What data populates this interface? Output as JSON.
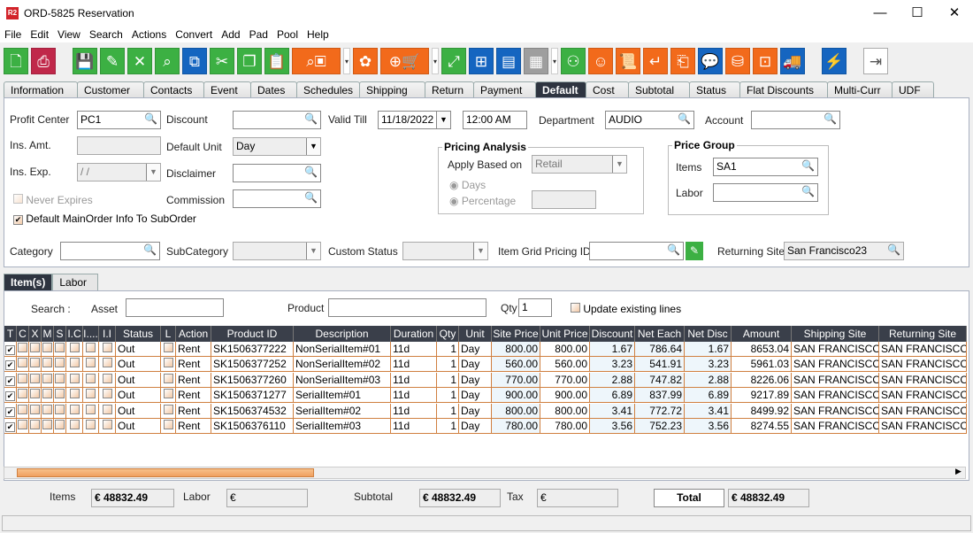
{
  "window": {
    "logo": "R2",
    "title": "ORD-5825 Reservation",
    "min": "—",
    "max": "☐",
    "close": "✕"
  },
  "menu": [
    "File",
    "Edit",
    "View",
    "Search",
    "Actions",
    "Convert",
    "Add",
    "Pad",
    "Pool",
    "Help"
  ],
  "toolbar": [
    {
      "icon": "new-document-icon",
      "glyph": "🗋",
      "color": "#3cb043"
    },
    {
      "icon": "print-icon",
      "glyph": "⎙",
      "color": "#c0284a",
      "gap": true
    },
    {
      "icon": "save-icon",
      "glyph": "💾",
      "color": "#3cb043"
    },
    {
      "icon": "edit-icon",
      "glyph": "✎",
      "color": "#3cb043"
    },
    {
      "icon": "delete-icon",
      "glyph": "✕",
      "color": "#3cb043"
    },
    {
      "icon": "search-icon",
      "glyph": "⌕",
      "color": "#3cb043"
    },
    {
      "icon": "copy-order-icon",
      "glyph": "⧉",
      "color": "#1565c0"
    },
    {
      "icon": "cut-icon",
      "glyph": "✂",
      "color": "#3cb043"
    },
    {
      "icon": "copy-icon",
      "glyph": "❐",
      "color": "#3cb043"
    },
    {
      "icon": "paste-icon",
      "glyph": "📋",
      "color": "#3cb043"
    },
    {
      "icon": "search-inventory-icon",
      "glyph": "⌕▣",
      "color": "#f26a1b",
      "wide": true
    },
    {
      "icon": "dropdown-icon",
      "glyph": "▾",
      "drop": true
    },
    {
      "icon": "components-icon",
      "glyph": "✿",
      "color": "#f26a1b"
    },
    {
      "icon": "add-to-cart-icon",
      "glyph": "⊕🛒",
      "color": "#f26a1b",
      "wide": true
    },
    {
      "icon": "dropdown-icon",
      "glyph": "▾",
      "drop": true
    },
    {
      "icon": "expand-icon",
      "glyph": "⤢",
      "color": "#3cb043"
    },
    {
      "icon": "hierarchy-icon",
      "glyph": "⊞",
      "color": "#1565c0"
    },
    {
      "icon": "message-icon",
      "glyph": "▤",
      "color": "#1565c0"
    },
    {
      "icon": "calendar-icon",
      "glyph": "▦",
      "color": "#9e9e9e"
    },
    {
      "icon": "dropdown-icon",
      "glyph": "▾",
      "drop": true
    },
    {
      "icon": "network-icon",
      "glyph": "⚇",
      "color": "#3cb043"
    },
    {
      "icon": "smiley-icon",
      "glyph": "☺",
      "color": "#f26a1b"
    },
    {
      "icon": "scroll-icon",
      "glyph": "📜",
      "color": "#f26a1b"
    },
    {
      "icon": "return-icon",
      "glyph": "↵",
      "color": "#f26a1b"
    },
    {
      "icon": "box-return-icon",
      "glyph": "⎗",
      "color": "#f26a1b"
    },
    {
      "icon": "chat-count-icon",
      "glyph": "💬",
      "color": "#1565c0"
    },
    {
      "icon": "coins-icon",
      "glyph": "⛁",
      "color": "#f26a1b"
    },
    {
      "icon": "safe-icon",
      "glyph": "⊡",
      "color": "#f26a1b"
    },
    {
      "icon": "delivery-truck-icon",
      "glyph": "🚚",
      "color": "#1565c0",
      "gap": true
    },
    {
      "icon": "lightning-icon",
      "glyph": "⚡",
      "color": "#1565c0",
      "gap": true
    },
    {
      "icon": "exit-icon",
      "glyph": "⇥",
      "color": "#ffffff"
    }
  ],
  "tabs": [
    "Information",
    "Customer",
    "Contacts",
    "Event",
    "Dates",
    "Schedules",
    "Shipping",
    "Return",
    "Payment",
    "Default",
    "Cost",
    "Subtotal",
    "Status",
    "Flat Discounts",
    "Multi-Curr",
    "UDF"
  ],
  "active_tab": "Default",
  "form": {
    "profit_center": {
      "label": "Profit Center",
      "value": "PC1"
    },
    "discount": {
      "label": "Discount",
      "value": ""
    },
    "valid_till": {
      "label": "Valid Till",
      "date": "11/18/2022",
      "time": "12:00 AM"
    },
    "department": {
      "label": "Department",
      "value": "AUDIO"
    },
    "account": {
      "label": "Account",
      "value": ""
    },
    "ins_amt": {
      "label": "Ins. Amt.",
      "value": ""
    },
    "default_unit": {
      "label": "Default Unit",
      "value": "Day"
    },
    "ins_exp": {
      "label": "Ins. Exp.",
      "value": " / /"
    },
    "disclaimer": {
      "label": "Disclaimer",
      "value": ""
    },
    "commission": {
      "label": "Commission",
      "value": ""
    },
    "never_expires": {
      "label": "Never Expires",
      "checked": false
    },
    "default_mainorder": {
      "label": "Default MainOrder Info To SubOrder",
      "checked": true
    },
    "pricing_analysis": {
      "title": "Pricing Analysis",
      "apply_label": "Apply Based on",
      "apply_value": "Retail",
      "days": "Days",
      "percentage": "Percentage"
    },
    "price_group": {
      "title": "Price Group",
      "items_label": "Items",
      "items_value": "SA1",
      "labor_label": "Labor",
      "labor_value": ""
    },
    "category": {
      "label": "Category",
      "value": ""
    },
    "subcategory": {
      "label": "SubCategory",
      "value": ""
    },
    "custom_status": {
      "label": "Custom Status",
      "value": ""
    },
    "item_grid_pricing": {
      "label": "Item Grid Pricing ID",
      "value": ""
    },
    "returning_site": {
      "label": "Returning Site",
      "value": "San Francisco23"
    }
  },
  "subtabs": [
    "Item(s)",
    "Labor"
  ],
  "search": {
    "label": "Search :",
    "asset": "Asset",
    "product": "Product",
    "qty": "Qty",
    "qty_value": "1",
    "update_existing": "Update existing lines"
  },
  "columns": [
    "T",
    "C",
    "X",
    "M",
    "S",
    "I.C",
    "I....",
    "I.I",
    "Status",
    "L",
    "Action",
    "Product ID",
    "Description",
    "Duration",
    "Qty",
    "Unit",
    "Site Price",
    "Unit Price",
    "Discount",
    "Net Each",
    "Net Disc",
    "Amount",
    "Shipping Site",
    "Returning Site"
  ],
  "rows": [
    {
      "t": true,
      "status": "Out",
      "action": "Rent",
      "product_id": "SK1506377222",
      "description": "NonSerialItem#01",
      "duration": "11d",
      "qty": "1",
      "unit": "Day",
      "site_price": "800.00",
      "unit_price": "800.00",
      "discount": "1.67",
      "net_each": "786.64",
      "net_disc": "1.67",
      "amount": "8653.04",
      "shipping_site": "SAN FRANCISCO",
      "returning_site": "SAN FRANCISCO"
    },
    {
      "t": true,
      "status": "Out",
      "action": "Rent",
      "product_id": "SK1506377252",
      "description": "NonSerialItem#02",
      "duration": "11d",
      "qty": "1",
      "unit": "Day",
      "site_price": "560.00",
      "unit_price": "560.00",
      "discount": "3.23",
      "net_each": "541.91",
      "net_disc": "3.23",
      "amount": "5961.03",
      "shipping_site": "SAN FRANCISCO",
      "returning_site": "SAN FRANCISCO"
    },
    {
      "t": true,
      "status": "Out",
      "action": "Rent",
      "product_id": "SK1506377260",
      "description": "NonSerialItem#03",
      "duration": "11d",
      "qty": "1",
      "unit": "Day",
      "site_price": "770.00",
      "unit_price": "770.00",
      "discount": "2.88",
      "net_each": "747.82",
      "net_disc": "2.88",
      "amount": "8226.06",
      "shipping_site": "SAN FRANCISCO",
      "returning_site": "SAN FRANCISCO"
    },
    {
      "t": true,
      "status": "Out",
      "action": "Rent",
      "product_id": "SK1506371277",
      "description": "SerialItem#01",
      "duration": "11d",
      "qty": "1",
      "unit": "Day",
      "site_price": "900.00",
      "unit_price": "900.00",
      "discount": "6.89",
      "net_each": "837.99",
      "net_disc": "6.89",
      "amount": "9217.89",
      "shipping_site": "SAN FRANCISCO",
      "returning_site": "SAN FRANCISCO"
    },
    {
      "t": true,
      "status": "Out",
      "action": "Rent",
      "product_id": "SK1506374532",
      "description": "SerialItem#02",
      "duration": "11d",
      "qty": "1",
      "unit": "Day",
      "site_price": "800.00",
      "unit_price": "800.00",
      "discount": "3.41",
      "net_each": "772.72",
      "net_disc": "3.41",
      "amount": "8499.92",
      "shipping_site": "SAN FRANCISCO",
      "returning_site": "SAN FRANCISCO"
    },
    {
      "t": true,
      "status": "Out",
      "action": "Rent",
      "product_id": "SK1506376110",
      "description": "SerialItem#03",
      "duration": "11d",
      "qty": "1",
      "unit": "Day",
      "site_price": "780.00",
      "unit_price": "780.00",
      "discount": "3.56",
      "net_each": "752.23",
      "net_disc": "3.56",
      "amount": "8274.55",
      "shipping_site": "SAN FRANCISCO",
      "returning_site": "SAN FRANCISCO"
    }
  ],
  "totals": {
    "items_label": "Items",
    "items": "€ 48832.49",
    "labor_label": "Labor",
    "labor": "€",
    "subtotal_label": "Subtotal",
    "subtotal": "€ 48832.49",
    "tax_label": "Tax",
    "tax": "€",
    "total_label": "Total",
    "total": "€ 48832.49"
  }
}
